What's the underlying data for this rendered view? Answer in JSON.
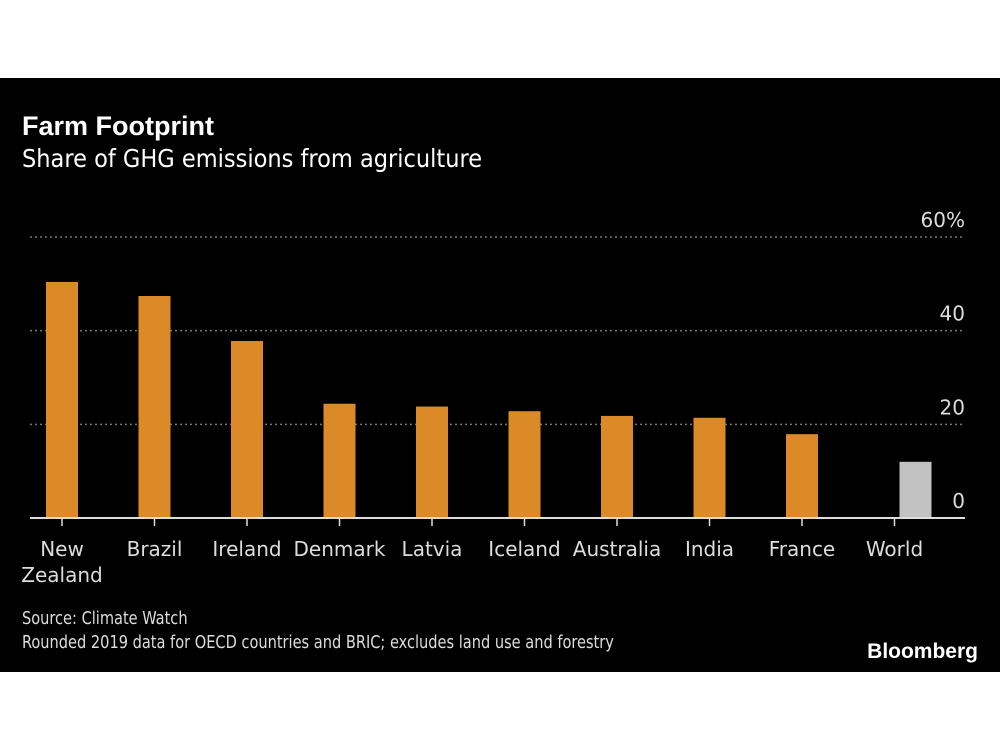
{
  "chart_data": {
    "type": "bar",
    "title": "Farm Footprint",
    "subtitle": "Share of GHG emissions from agriculture",
    "categories": [
      "New Zealand",
      "Brazil",
      "Ireland",
      "Denmark",
      "Latvia",
      "Iceland",
      "Australia",
      "India",
      "France",
      "World"
    ],
    "category_lines": [
      [
        "New",
        "Zealand"
      ],
      [
        "Brazil"
      ],
      [
        "Ireland"
      ],
      [
        "Denmark"
      ],
      [
        "Latvia"
      ],
      [
        "Iceland"
      ],
      [
        "Australia"
      ],
      [
        "India"
      ],
      [
        "France"
      ],
      [
        "World"
      ]
    ],
    "values": [
      50.4,
      47.4,
      37.8,
      24.4,
      23.8,
      22.8,
      21.8,
      21.4,
      17.9,
      12.0
    ],
    "colors": [
      "#dc8a27",
      "#dc8a27",
      "#dc8a27",
      "#dc8a27",
      "#dc8a27",
      "#dc8a27",
      "#dc8a27",
      "#dc8a27",
      "#dc8a27",
      "#c2c2c2"
    ],
    "ylim": [
      0,
      60
    ],
    "yticks": [
      0,
      20,
      40,
      60
    ],
    "ytick_labels": [
      "0",
      "20",
      "40",
      "60%"
    ],
    "grid": true,
    "yaxis_position": "right"
  },
  "source": "Source: Climate Watch",
  "note": "Rounded 2019 data for OECD countries and BRIC; excludes land use and forestry",
  "logo": "Bloomberg"
}
